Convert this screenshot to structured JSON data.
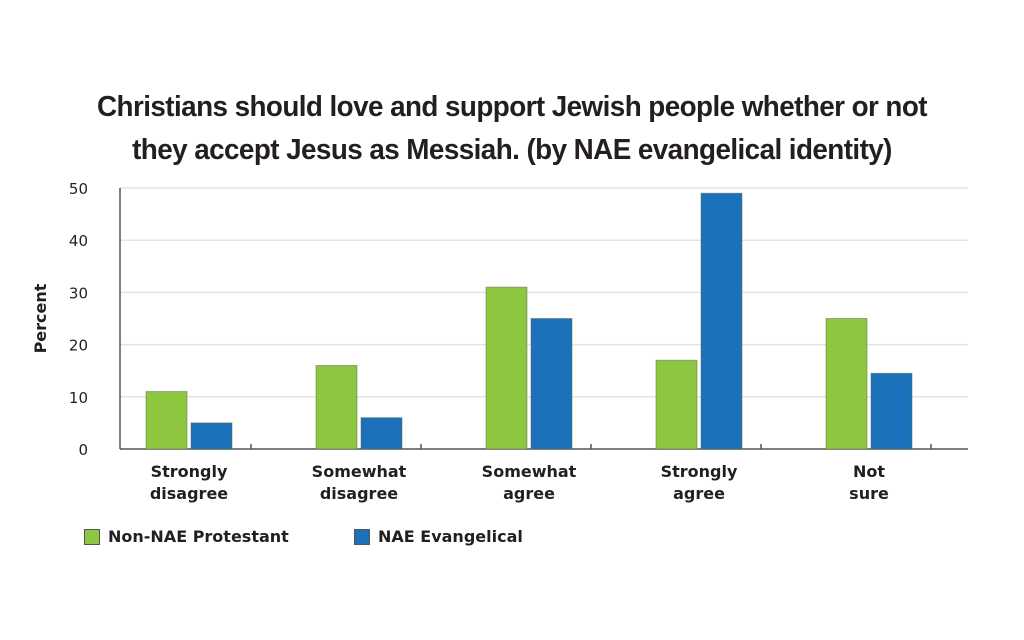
{
  "chart_data": {
    "type": "bar",
    "title_lines": [
      "Christians should love and support Jewish people whether or not",
      "they accept Jesus as Messiah.  (by NAE evangelical identity)"
    ],
    "xlabel": "",
    "ylabel": "Percent",
    "ylim": [
      0,
      50
    ],
    "yticks": [
      0,
      10,
      20,
      30,
      40,
      50
    ],
    "grid": true,
    "legend_position": "bottom-left",
    "categories": [
      [
        "Strongly",
        "disagree"
      ],
      [
        "Somewhat",
        "disagree"
      ],
      [
        "Somewhat",
        "agree"
      ],
      [
        "Strongly",
        "agree"
      ],
      [
        "Not",
        "sure"
      ]
    ],
    "series": [
      {
        "name": "Non-NAE Protestant",
        "color": "#8dc63f",
        "values": [
          11,
          16,
          31,
          17,
          25
        ]
      },
      {
        "name": "NAE Evangelical",
        "color": "#1b72ba",
        "values": [
          5,
          6,
          25,
          49,
          14.5
        ]
      }
    ]
  }
}
